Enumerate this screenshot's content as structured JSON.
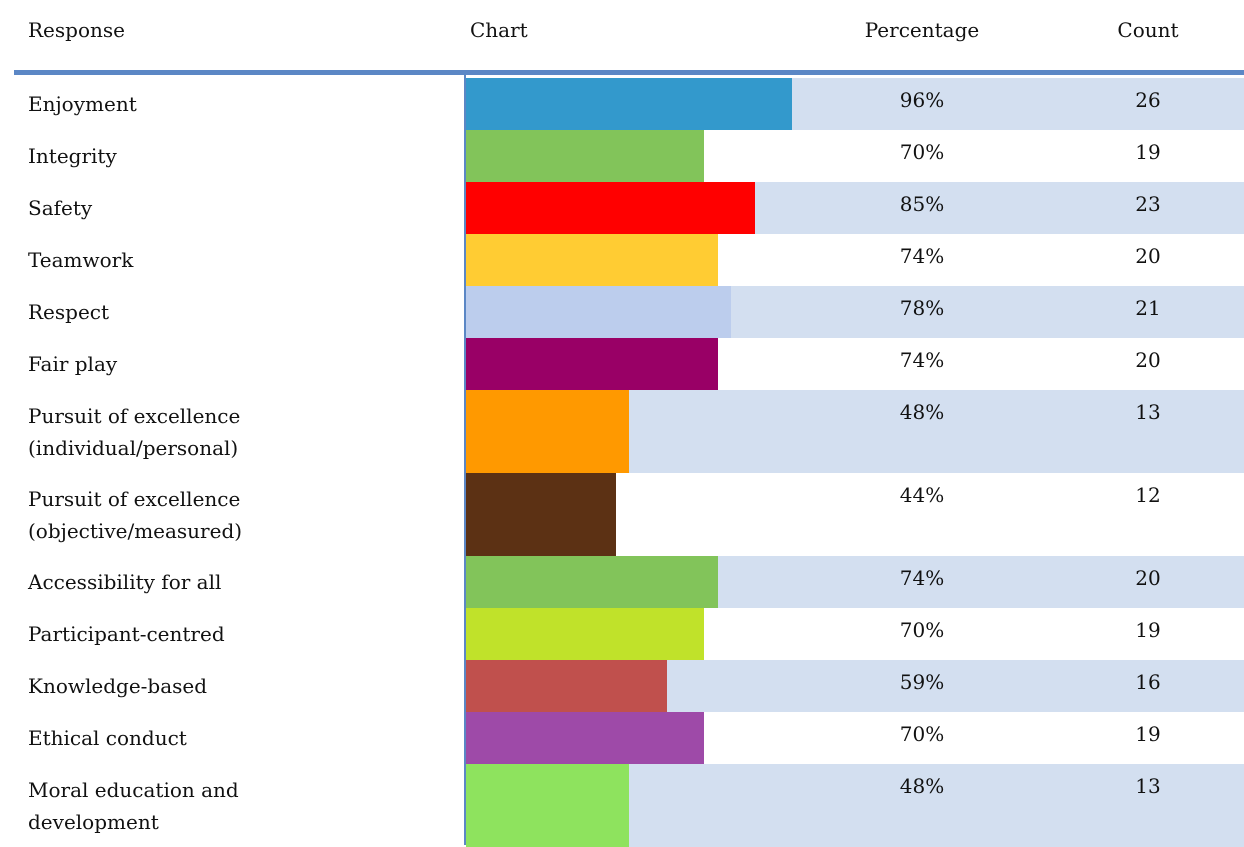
{
  "table": {
    "headers": [
      "Response",
      "Chart",
      "Percentage",
      "Count"
    ],
    "rows": [
      {
        "response": "Enjoyment",
        "percentage": {
          "value": 96,
          "label": "96%"
        },
        "count": 26,
        "color": "#3399cc"
      },
      {
        "response": "Integrity",
        "percentage": {
          "value": 70,
          "label": "70%"
        },
        "count": 19,
        "color": "#82c45a"
      },
      {
        "response": "Safety",
        "percentage": {
          "value": 85,
          "label": "85%"
        },
        "count": 23,
        "color": "#ff0000"
      },
      {
        "response": "Teamwork",
        "percentage": {
          "value": 74,
          "label": "74%"
        },
        "count": 20,
        "color": "#ffcc33"
      },
      {
        "response": "Respect",
        "percentage": {
          "value": 78,
          "label": "78%"
        },
        "count": 21,
        "color": "#bccded"
      },
      {
        "response": "Fair play",
        "percentage": {
          "value": 74,
          "label": "74%"
        },
        "count": 20,
        "color": "#990066"
      },
      {
        "response": "Pursuit of excellence\n(individual/personal)",
        "percentage": {
          "value": 48,
          "label": "48%"
        },
        "count": 13,
        "color": "#ff9900"
      },
      {
        "response": "Pursuit of excellence\n(objective/measured)",
        "percentage": {
          "value": 44,
          "label": "44%"
        },
        "count": 12,
        "color": "#5c3114"
      },
      {
        "response": "Accessibility for all",
        "percentage": {
          "value": 74,
          "label": "74%"
        },
        "count": 20,
        "color": "#82c45a"
      },
      {
        "response": "Participant-centred",
        "percentage": {
          "value": 70,
          "label": "70%"
        },
        "count": 19,
        "color": "#c0e22a"
      },
      {
        "response": "Knowledge-based",
        "percentage": {
          "value": 59,
          "label": "59%"
        },
        "count": 16,
        "color": "#c0504d"
      },
      {
        "response": "Ethical conduct",
        "percentage": {
          "value": 70,
          "label": "70%"
        },
        "count": 19,
        "color": "#9e4aa8"
      },
      {
        "response": "Moral education and\ndevelopment",
        "percentage": {
          "value": 48,
          "label": "48%"
        },
        "count": 13,
        "color": "#8ee35e"
      }
    ]
  }
}
